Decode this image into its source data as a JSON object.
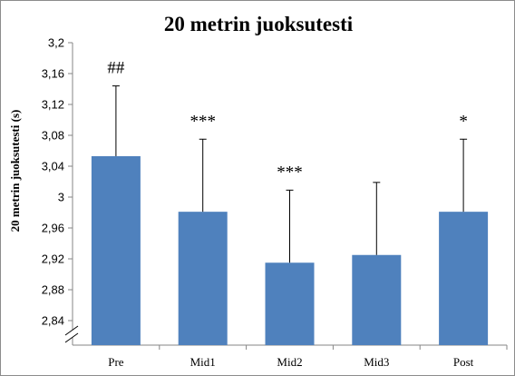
{
  "chart_data": {
    "type": "bar",
    "title": "20 metrin juoksutesti",
    "ylabel": "20 metrin juoksutesti (s)",
    "xlabel": "",
    "categories": [
      "Pre",
      "Mid1",
      "Mid2",
      "Mid3",
      "Post"
    ],
    "values": [
      3.053,
      2.981,
      2.915,
      2.925,
      2.981
    ],
    "error_upper": [
      3.144,
      3.075,
      3.009,
      3.019,
      3.075
    ],
    "annotations": [
      "##",
      "***",
      "***",
      "",
      "*"
    ],
    "ylim": [
      2.84,
      3.2
    ],
    "y_ticks": [
      2.84,
      2.88,
      2.92,
      2.96,
      3.0,
      3.04,
      3.08,
      3.12,
      3.16,
      3.2
    ],
    "y_tick_labels": [
      "2,84",
      "2,88",
      "2,92",
      "2,96",
      "3",
      "3,04",
      "3,08",
      "3,12",
      "3,16",
      "3,2"
    ],
    "axis_break": true,
    "grid": false,
    "legend": "none",
    "bar_color": "#4f81bd"
  }
}
